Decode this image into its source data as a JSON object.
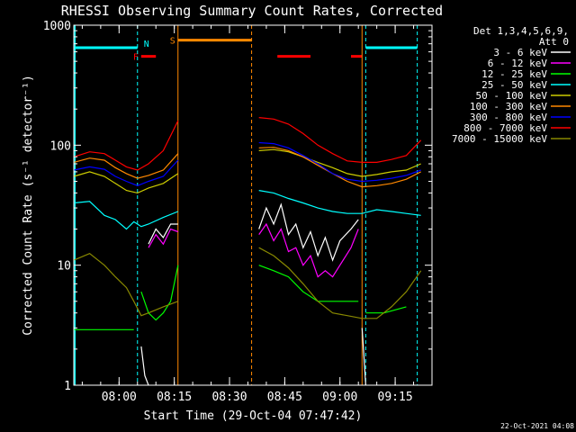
{
  "chart_data": {
    "type": "line",
    "title": "RHESSI Observing Summary Count Rates, Corrected",
    "ylabel": "Corrected Count Rate (s⁻¹ detector⁻¹)",
    "xlabel": "Start Time (29-Oct-04 07:47:42)",
    "y_scale": "log",
    "ylim": [
      1,
      1000
    ],
    "xlim": [
      "07:47:42",
      "09:25:00"
    ],
    "yticks": [
      {
        "value": 1,
        "label": "1"
      },
      {
        "value": 10,
        "label": "10"
      },
      {
        "value": 100,
        "label": "100"
      },
      {
        "value": 1000,
        "label": "1000"
      }
    ],
    "xticks": [
      {
        "time": "08:00",
        "label": "08:00"
      },
      {
        "time": "08:15",
        "label": "08:15"
      },
      {
        "time": "08:30",
        "label": "08:30"
      },
      {
        "time": "08:45",
        "label": "08:45"
      },
      {
        "time": "09:00",
        "label": "09:00"
      },
      {
        "time": "09:15",
        "label": "09:15"
      }
    ],
    "legend_header": [
      "Det 1,3,4,5,6,9,",
      "Att 0"
    ],
    "legend_position": "right",
    "timestamp": "22-Oct-2021 04:08",
    "series": [
      {
        "name": "3 - 6 keV",
        "color": "#ffffff",
        "segments": [
          [
            [
              "08:06",
              2.1
            ],
            [
              "08:07",
              1.2
            ],
            [
              "08:08",
              1.0
            ]
          ],
          [
            [
              "08:08",
              15
            ],
            [
              "08:10",
              20
            ],
            [
              "08:12",
              17
            ],
            [
              "08:14",
              22
            ],
            [
              "08:16",
              22
            ]
          ],
          [
            [
              "08:38",
              20
            ],
            [
              "08:40",
              30
            ],
            [
              "08:42",
              22
            ],
            [
              "08:44",
              32
            ],
            [
              "08:46",
              18
            ],
            [
              "08:48",
              22
            ],
            [
              "08:50",
              14
            ],
            [
              "08:52",
              19
            ],
            [
              "08:54",
              12
            ],
            [
              "08:56",
              17
            ],
            [
              "08:58",
              11
            ],
            [
              "09:00",
              16
            ],
            [
              "09:03",
              20
            ],
            [
              "09:05",
              24
            ]
          ],
          [
            [
              "09:06",
              3.0
            ],
            [
              "09:07",
              1.0
            ]
          ]
        ]
      },
      {
        "name": "6 - 12 keV",
        "color": "#ff00ff",
        "segments": [
          [
            [
              "08:08",
              14
            ],
            [
              "08:10",
              18
            ],
            [
              "08:12",
              15
            ],
            [
              "08:14",
              20
            ],
            [
              "08:16",
              19
            ]
          ],
          [
            [
              "08:38",
              18
            ],
            [
              "08:40",
              22
            ],
            [
              "08:42",
              16
            ],
            [
              "08:44",
              20
            ],
            [
              "08:46",
              13
            ],
            [
              "08:48",
              14
            ],
            [
              "08:50",
              10
            ],
            [
              "08:52",
              12
            ],
            [
              "08:54",
              8
            ],
            [
              "08:56",
              9
            ],
            [
              "08:58",
              8
            ],
            [
              "09:00",
              10
            ],
            [
              "09:03",
              14
            ],
            [
              "09:05",
              20
            ]
          ]
        ]
      },
      {
        "name": "12 - 25 keV",
        "color": "#00ff00",
        "segments": [
          [
            [
              "07:47:42",
              2.9
            ],
            [
              "08:04",
              2.9
            ]
          ],
          [
            [
              "08:06",
              6
            ],
            [
              "08:08",
              4
            ],
            [
              "08:10",
              3.5
            ],
            [
              "08:12",
              4
            ],
            [
              "08:14",
              5
            ],
            [
              "08:16",
              10
            ]
          ],
          [
            [
              "08:38",
              10
            ],
            [
              "08:42",
              9
            ],
            [
              "08:46",
              8
            ],
            [
              "08:50",
              6
            ],
            [
              "08:54",
              5
            ],
            [
              "08:58",
              5
            ],
            [
              "09:05",
              5
            ]
          ],
          [
            [
              "09:07",
              4
            ],
            [
              "09:12",
              4
            ],
            [
              "09:18",
              4.5
            ]
          ]
        ]
      },
      {
        "name": "25 - 50 keV",
        "color": "#00ffff",
        "segments": [
          [
            [
              "07:47:42",
              33
            ],
            [
              "07:52",
              34
            ],
            [
              "07:56",
              26
            ],
            [
              "07:59",
              24
            ],
            [
              "08:02",
              20
            ],
            [
              "08:04",
              23
            ],
            [
              "08:06",
              21
            ],
            [
              "08:08",
              22
            ],
            [
              "08:12",
              25
            ],
            [
              "08:16",
              28
            ]
          ],
          [
            [
              "08:38",
              42
            ],
            [
              "08:42",
              40
            ],
            [
              "08:46",
              36
            ],
            [
              "08:50",
              33
            ],
            [
              "08:54",
              30
            ],
            [
              "08:58",
              28
            ],
            [
              "09:02",
              27
            ],
            [
              "09:06",
              27
            ],
            [
              "09:10",
              29
            ],
            [
              "09:14",
              28
            ],
            [
              "09:18",
              27
            ],
            [
              "09:22",
              26
            ]
          ]
        ]
      },
      {
        "name": "50 - 100 keV",
        "color": "#cccc00",
        "segments": [
          [
            [
              "07:47:42",
              55
            ],
            [
              "07:52",
              60
            ],
            [
              "07:56",
              55
            ],
            [
              "07:59",
              48
            ],
            [
              "08:02",
              42
            ],
            [
              "08:05",
              40
            ],
            [
              "08:08",
              44
            ],
            [
              "08:12",
              48
            ],
            [
              "08:16",
              58
            ]
          ],
          [
            [
              "08:38",
              90
            ],
            [
              "08:42",
              92
            ],
            [
              "08:46",
              88
            ],
            [
              "08:50",
              80
            ],
            [
              "08:54",
              72
            ],
            [
              "08:58",
              65
            ],
            [
              "09:02",
              58
            ],
            [
              "09:06",
              55
            ],
            [
              "09:10",
              57
            ],
            [
              "09:14",
              60
            ],
            [
              "09:18",
              62
            ],
            [
              "09:22",
              70
            ]
          ]
        ]
      },
      {
        "name": "100 - 300 keV",
        "color": "#ff8800",
        "segments": [
          [
            [
              "07:47:42",
              72
            ],
            [
              "07:52",
              78
            ],
            [
              "07:56",
              75
            ],
            [
              "07:59",
              65
            ],
            [
              "08:02",
              58
            ],
            [
              "08:05",
              53
            ],
            [
              "08:08",
              56
            ],
            [
              "08:12",
              62
            ],
            [
              "08:16",
              85
            ]
          ],
          [
            [
              "08:38",
              95
            ],
            [
              "08:42",
              96
            ],
            [
              "08:46",
              90
            ],
            [
              "08:50",
              80
            ],
            [
              "08:54",
              68
            ],
            [
              "08:58",
              58
            ],
            [
              "09:02",
              50
            ],
            [
              "09:06",
              45
            ],
            [
              "09:10",
              46
            ],
            [
              "09:14",
              48
            ],
            [
              "09:18",
              52
            ],
            [
              "09:22",
              60
            ]
          ]
        ]
      },
      {
        "name": "300 - 800 keV",
        "color": "#0000ff",
        "segments": [
          [
            [
              "07:47:42",
              62
            ],
            [
              "07:52",
              66
            ],
            [
              "07:56",
              63
            ],
            [
              "07:59",
              55
            ],
            [
              "08:02",
              50
            ],
            [
              "08:05",
              46
            ],
            [
              "08:08",
              50
            ],
            [
              "08:12",
              55
            ],
            [
              "08:16",
              75
            ]
          ],
          [
            [
              "08:38",
              105
            ],
            [
              "08:42",
              103
            ],
            [
              "08:46",
              95
            ],
            [
              "08:50",
              82
            ],
            [
              "08:54",
              70
            ],
            [
              "08:58",
              58
            ],
            [
              "09:02",
              52
            ],
            [
              "09:06",
              50
            ],
            [
              "09:10",
              51
            ],
            [
              "09:14",
              53
            ],
            [
              "09:18",
              56
            ],
            [
              "09:22",
              62
            ]
          ]
        ]
      },
      {
        "name": "800 - 7000 keV",
        "color": "#ff0000",
        "segments": [
          [
            [
              "07:47:42",
              80
            ],
            [
              "07:52",
              88
            ],
            [
              "07:56",
              85
            ],
            [
              "07:59",
              75
            ],
            [
              "08:02",
              66
            ],
            [
              "08:05",
              62
            ],
            [
              "08:08",
              70
            ],
            [
              "08:12",
              90
            ],
            [
              "08:16",
              160
            ]
          ],
          [
            [
              "08:38",
              170
            ],
            [
              "08:42",
              165
            ],
            [
              "08:46",
              150
            ],
            [
              "08:50",
              125
            ],
            [
              "08:54",
              100
            ],
            [
              "08:58",
              85
            ],
            [
              "09:02",
              74
            ],
            [
              "09:06",
              72
            ],
            [
              "09:10",
              72
            ],
            [
              "09:14",
              76
            ],
            [
              "09:18",
              82
            ],
            [
              "09:22",
              110
            ]
          ]
        ]
      },
      {
        "name": "7000 - 15000 keV",
        "color": "#888800",
        "segments": [
          [
            [
              "07:47:42",
              11
            ],
            [
              "07:52",
              12.5
            ],
            [
              "07:56",
              10
            ],
            [
              "07:59",
              8
            ],
            [
              "08:02",
              6.5
            ],
            [
              "08:04",
              5
            ],
            [
              "08:06",
              3.8
            ],
            [
              "08:08",
              4
            ],
            [
              "08:12",
              4.5
            ],
            [
              "08:16",
              5
            ]
          ],
          [
            [
              "08:38",
              14
            ],
            [
              "08:42",
              12
            ],
            [
              "08:46",
              9.5
            ],
            [
              "08:50",
              7
            ],
            [
              "08:54",
              5
            ],
            [
              "08:58",
              4
            ],
            [
              "09:02",
              3.8
            ],
            [
              "09:06",
              3.6
            ],
            [
              "09:10",
              3.6
            ],
            [
              "09:14",
              4.5
            ],
            [
              "09:18",
              6
            ],
            [
              "09:22",
              9
            ]
          ]
        ]
      }
    ],
    "flag_bars": [
      {
        "label": "",
        "color": "#00ffff",
        "start": "07:47:42",
        "end": "08:05",
        "value": 650
      },
      {
        "label": "N",
        "color": "#00ffff",
        "start": "",
        "end": "",
        "value": 650
      },
      {
        "label": "S",
        "color": "#ff8800",
        "start": "08:16",
        "end": "08:36",
        "value": 750
      },
      {
        "label": "F",
        "color": "#ff0000",
        "start": "08:06",
        "end": "08:10",
        "value": 550
      },
      {
        "label": "",
        "color": "#ff0000",
        "start": "08:43",
        "end": "08:52",
        "value": 550
      },
      {
        "label": "",
        "color": "#ff0000",
        "start": "09:03",
        "end": "09:06",
        "value": 550
      },
      {
        "label": "",
        "color": "#00ffff",
        "start": "09:07",
        "end": "09:21",
        "value": 650
      }
    ],
    "vlines": [
      {
        "time": "08:05",
        "color": "#00ffff",
        "style": "dashed"
      },
      {
        "time": "08:16",
        "color": "#ff8800",
        "style": "solid"
      },
      {
        "time": "08:36",
        "color": "#ff8800",
        "style": "dashed"
      },
      {
        "time": "09:06",
        "color": "#ff8800",
        "style": "solid"
      },
      {
        "time": "09:07",
        "color": "#00ffff",
        "style": "dashed"
      },
      {
        "time": "09:21",
        "color": "#00ffff",
        "style": "dashed"
      }
    ],
    "edge_lines": [
      {
        "time": "07:47:42",
        "color": "#00ffff"
      }
    ]
  }
}
